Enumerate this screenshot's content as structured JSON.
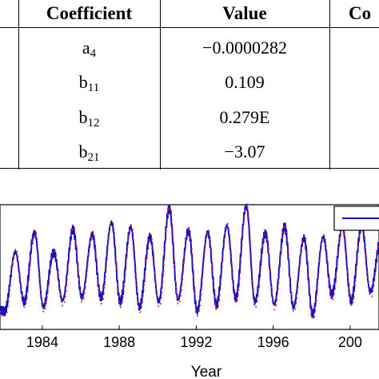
{
  "table": {
    "headers": [
      "Coefficient",
      "Value",
      "Co"
    ],
    "rows": [
      {
        "coef_base": "a",
        "coef_sub": "4",
        "value": "−0.0000282"
      },
      {
        "coef_base": "b",
        "coef_sub": "11",
        "value": "0.109"
      },
      {
        "coef_base": "b",
        "coef_sub": "12",
        "value": "0.279E"
      },
      {
        "coef_base": "b",
        "coef_sub": "21",
        "value": "−3.07"
      }
    ]
  },
  "chart_data": {
    "type": "line",
    "xlabel": "Year",
    "x_ticks": [
      "1984",
      "1988",
      "1992",
      "1996",
      "200"
    ],
    "xlim": [
      1981.8,
      2001.5
    ],
    "period_years": 1.0,
    "series": [
      {
        "style": "solid",
        "color": "#1010c8"
      },
      {
        "style": "dotted",
        "color": "#e02020"
      }
    ],
    "peaks_by_year": [
      {
        "year": 1982,
        "peak": 0.62,
        "trough": 0.15
      },
      {
        "year": 1983,
        "peak": 0.78,
        "trough": 0.22
      },
      {
        "year": 1984,
        "peak": 0.62,
        "trough": 0.18
      },
      {
        "year": 1985,
        "peak": 0.8,
        "trough": 0.23
      },
      {
        "year": 1986,
        "peak": 0.76,
        "trough": 0.26
      },
      {
        "year": 1987,
        "peak": 0.86,
        "trough": 0.25
      },
      {
        "year": 1988,
        "peak": 0.82,
        "trough": 0.22
      },
      {
        "year": 1989,
        "peak": 0.74,
        "trough": 0.18
      },
      {
        "year": 1990,
        "peak": 0.97,
        "trough": 0.22
      },
      {
        "year": 1991,
        "peak": 0.79,
        "trough": 0.24
      },
      {
        "year": 1992,
        "peak": 0.78,
        "trough": 0.15
      },
      {
        "year": 1993,
        "peak": 0.83,
        "trough": 0.2
      },
      {
        "year": 1994,
        "peak": 0.99,
        "trough": 0.25
      },
      {
        "year": 1995,
        "peak": 0.77,
        "trough": 0.22
      },
      {
        "year": 1996,
        "peak": 0.82,
        "trough": 0.2
      },
      {
        "year": 1997,
        "peak": 0.73,
        "trough": 0.18
      },
      {
        "year": 1998,
        "peak": 0.74,
        "trough": 0.12
      },
      {
        "year": 1999,
        "peak": 0.82,
        "trough": 0.28
      },
      {
        "year": 2000,
        "peak": 0.83,
        "trough": 0.23
      },
      {
        "year": 2001,
        "peak": 0.72,
        "trough": 0.3
      }
    ],
    "legend": {
      "placement": "top-right"
    }
  }
}
